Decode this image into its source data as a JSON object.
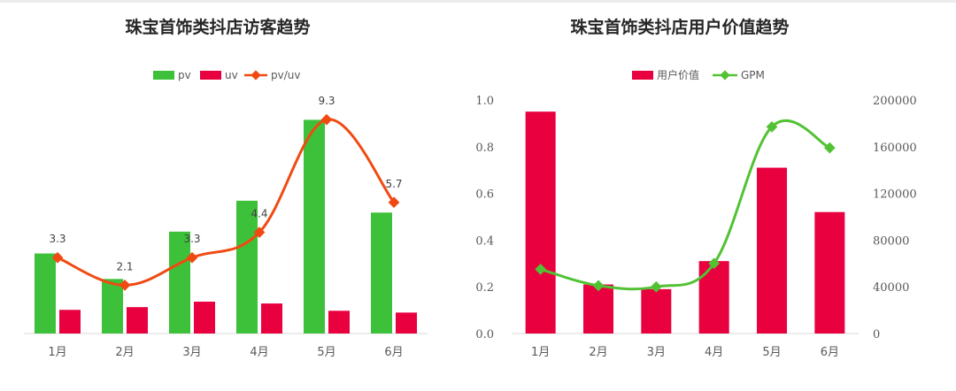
{
  "chart_data": [
    {
      "type": "bar",
      "title": "珠宝首饰类抖店访客趋势",
      "categories": [
        "1月",
        "2月",
        "3月",
        "4月",
        "5月",
        "6月"
      ],
      "series": [
        {
          "name": "pv",
          "type": "bar",
          "color": "#3ec13a",
          "values": [
            88,
            60,
            112,
            146,
            235,
            133
          ]
        },
        {
          "name": "uv",
          "type": "bar",
          "color": "#e8003f",
          "values": [
            26,
            29,
            35,
            33,
            25,
            23
          ]
        },
        {
          "name": "pv/uv",
          "type": "line",
          "color": "#f04a12",
          "values": [
            3.3,
            2.1,
            3.3,
            4.4,
            9.3,
            5.7
          ]
        }
      ],
      "data_labels": [
        "3.3",
        "2.1",
        "3.3",
        "4.4",
        "9.3",
        "5.7"
      ],
      "legend_position": "top-center",
      "grid": false
    },
    {
      "type": "bar",
      "title": "珠宝首饰类抖店用户价值趋势",
      "categories": [
        "1月",
        "2月",
        "3月",
        "4月",
        "5月",
        "6月"
      ],
      "series": [
        {
          "name": "用户价值",
          "type": "bar",
          "axis": "left",
          "color": "#e8003f",
          "values": [
            0.95,
            0.21,
            0.19,
            0.31,
            0.71,
            0.52
          ]
        },
        {
          "name": "GPM",
          "type": "line",
          "axis": "right",
          "color": "#52c234",
          "values": [
            55000,
            41000,
            40000,
            60000,
            177000,
            159000
          ]
        }
      ],
      "y_left": {
        "ylim": [
          0,
          1.0
        ],
        "ticks": [
          "0.0",
          "0.2",
          "0.4",
          "0.6",
          "0.8",
          "1.0"
        ]
      },
      "y_right": {
        "ylim": [
          0,
          200000
        ],
        "ticks": [
          "0",
          "40000",
          "80000",
          "120000",
          "160000",
          "200000"
        ]
      },
      "legend_position": "top-center",
      "grid": false
    }
  ]
}
